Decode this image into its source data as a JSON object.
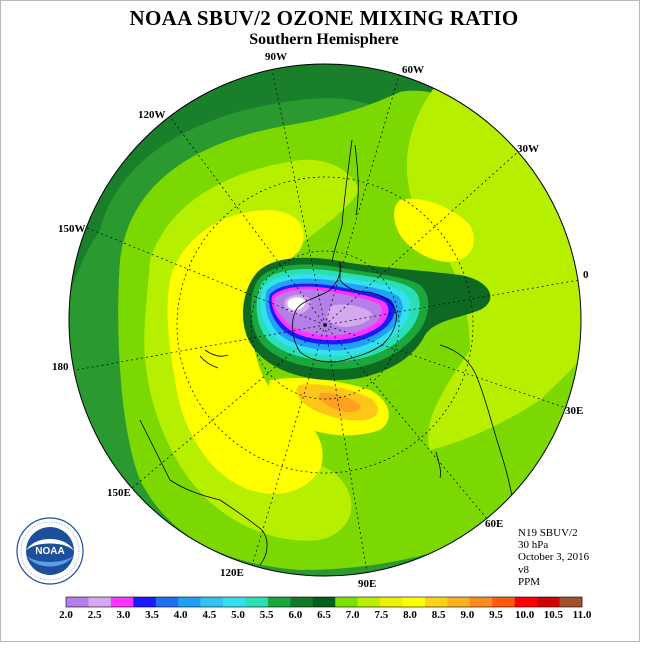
{
  "title": "NOAA SBUV/2 OZONE MIXING RATIO",
  "subtitle": "Southern Hemisphere",
  "longitude_labels": [
    "90W",
    "60W",
    "120W",
    "30W",
    "150W",
    "0",
    "180",
    "30E",
    "150E",
    "60E",
    "120E",
    "90E"
  ],
  "info": {
    "satellite": "N19 SBUV/2",
    "level": "30 hPa",
    "date": "October 3, 2016",
    "version": "v8",
    "units": "PPM"
  },
  "logo": {
    "text": "NOAA",
    "ring_text": "NATIONAL OCEANIC AND ATMOSPHERIC ADMINISTRATION · U.S. DEPARTMENT OF COMMERCE"
  },
  "colorbar": {
    "labels": [
      "2.0",
      "2.5",
      "3.0",
      "3.5",
      "4.0",
      "4.5",
      "5.0",
      "5.5",
      "6.0",
      "6.5",
      "7.0",
      "7.5",
      "8.0",
      "8.5",
      "9.0",
      "9.5",
      "10.0",
      "10.5",
      "11.0"
    ],
    "colors": [
      "#b57fe8",
      "#d5a9f0",
      "#ff33ff",
      "#1a1aff",
      "#1f6ff2",
      "#22a0f5",
      "#33c3f0",
      "#33e0f0",
      "#2adfb8",
      "#1aa83c",
      "#127a2b",
      "#005f1c",
      "#7ee000",
      "#b9f000",
      "#eef000",
      "#ffff00",
      "#ffd21a",
      "#ffb020",
      "#ff8c1a",
      "#ff5a10",
      "#ff0000",
      "#d00000",
      "#a0522d"
    ]
  }
}
